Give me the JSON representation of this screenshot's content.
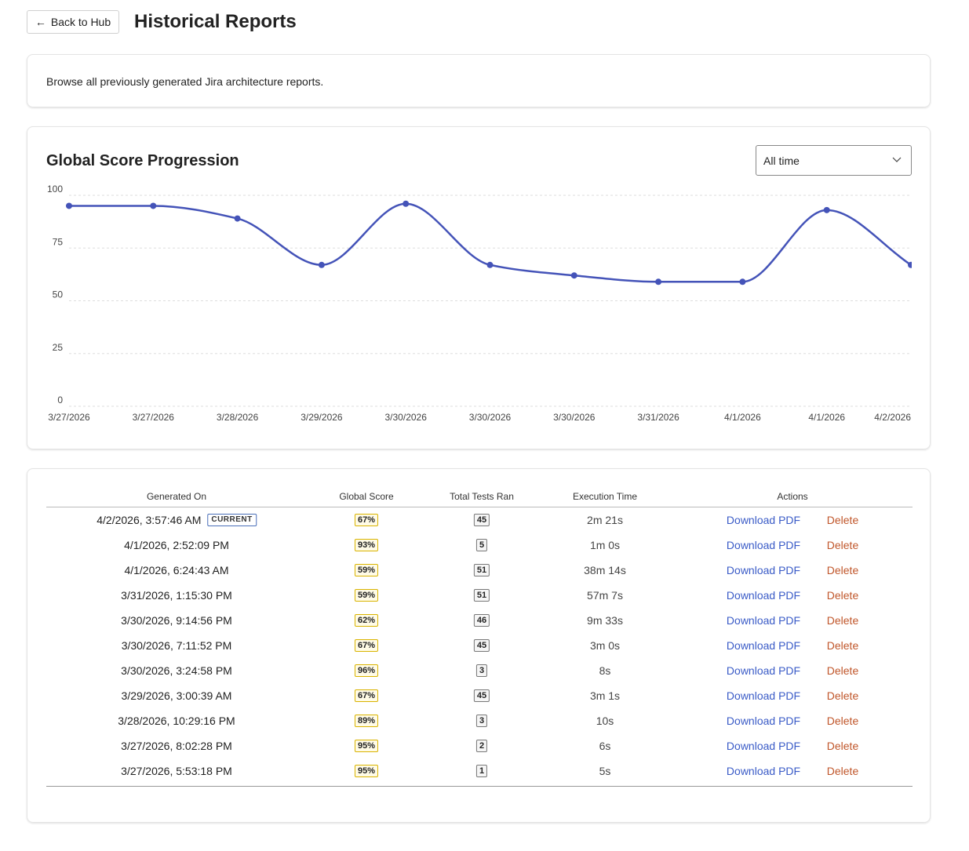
{
  "header": {
    "back_button": "Back to Hub",
    "title": "Historical Reports"
  },
  "intro": "Browse all previously generated Jira architecture reports.",
  "chart_data": {
    "type": "line",
    "title": "Global Score Progression",
    "range_filter": "All time",
    "categories": [
      "3/27/2026",
      "3/27/2026",
      "3/28/2026",
      "3/29/2026",
      "3/30/2026",
      "3/30/2026",
      "3/30/2026",
      "3/31/2026",
      "4/1/2026",
      "4/1/2026",
      "4/2/2026"
    ],
    "series": [
      {
        "color": "#4453b8",
        "values": [
          95,
          95,
          89,
          67,
          96,
          67,
          62,
          59,
          59,
          93,
          67
        ]
      }
    ],
    "ylim": [
      0,
      100
    ],
    "yticks": [
      0,
      25,
      50,
      75,
      100
    ],
    "grid": true
  },
  "table": {
    "columns": [
      "Generated On",
      "Global Score",
      "Total Tests Ran",
      "Execution Time",
      "Actions"
    ],
    "current_badge": "CURRENT",
    "actions": [
      "Download PDF",
      "Delete"
    ],
    "rows": [
      [
        "4/2/2026, 3:57:46 AM",
        "67%",
        45,
        "2m 21s"
      ],
      [
        "4/1/2026, 2:52:09 PM",
        "93%",
        5,
        "1m 0s"
      ],
      [
        "4/1/2026, 6:24:43 AM",
        "59%",
        51,
        "38m 14s"
      ],
      [
        "3/31/2026, 1:15:30 PM",
        "59%",
        51,
        "57m 7s"
      ],
      [
        "3/30/2026, 9:14:56 PM",
        "62%",
        46,
        "9m 33s"
      ],
      [
        "3/30/2026, 7:11:52 PM",
        "67%",
        45,
        "3m 0s"
      ],
      [
        "3/30/2026, 3:24:58 PM",
        "96%",
        3,
        "8s"
      ],
      [
        "3/29/2026, 3:00:39 AM",
        "67%",
        45,
        "3m 1s"
      ],
      [
        "3/28/2026, 10:29:16 PM",
        "89%",
        3,
        "10s"
      ],
      [
        "3/27/2026, 8:02:28 PM",
        "95%",
        2,
        "6s"
      ],
      [
        "3/27/2026, 5:53:18 PM",
        "95%",
        1,
        "5s"
      ]
    ]
  }
}
